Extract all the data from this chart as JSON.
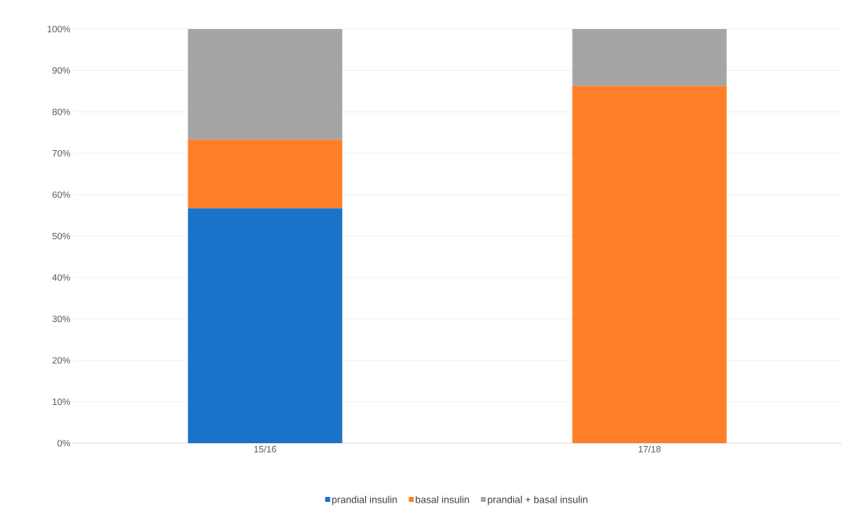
{
  "chart_data": {
    "type": "bar",
    "stacked": true,
    "categories": [
      "15/16",
      "17/18"
    ],
    "series": [
      {
        "name": "prandial insulin",
        "color": "#1a73c8",
        "values": [
          56.7,
          0
        ]
      },
      {
        "name": "basal insulin",
        "color": "#fe7f27",
        "values": [
          16.6,
          86.3
        ]
      },
      {
        "name": "prandial + basal insulin",
        "color": "#a5a5a5",
        "values": [
          26.7,
          13.7
        ]
      }
    ],
    "ylim": [
      0,
      100
    ],
    "yticks": [
      {
        "value": 0,
        "label": "0%"
      },
      {
        "value": 10,
        "label": "10%"
      },
      {
        "value": 20,
        "label": "20%"
      },
      {
        "value": 30,
        "label": "30%"
      },
      {
        "value": 40,
        "label": "40%"
      },
      {
        "value": 50,
        "label": "50%"
      },
      {
        "value": 60,
        "label": "60%"
      },
      {
        "value": 70,
        "label": "70%"
      },
      {
        "value": 80,
        "label": "80%"
      },
      {
        "value": 90,
        "label": "90%"
      },
      {
        "value": 100,
        "label": "100%"
      }
    ],
    "grid": "y",
    "legend": "bottom"
  }
}
